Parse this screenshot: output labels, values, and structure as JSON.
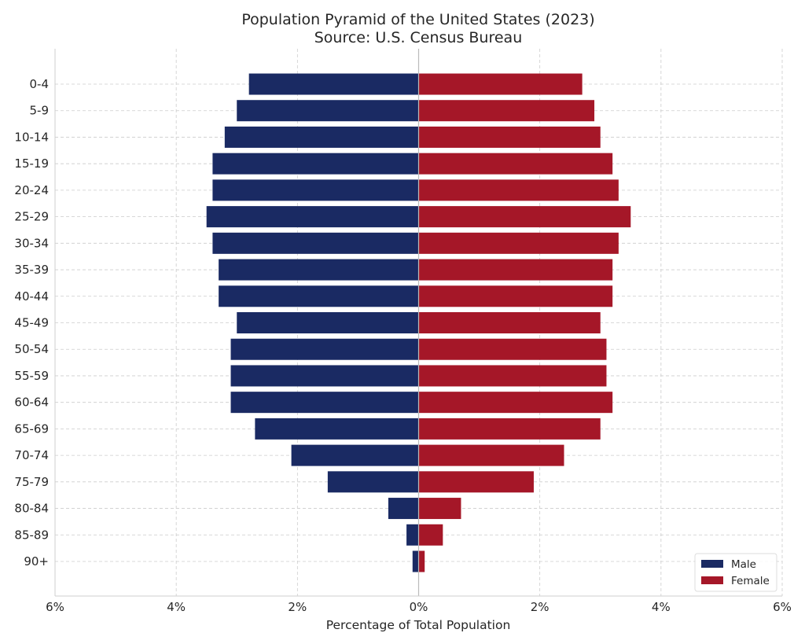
{
  "chart_data": {
    "type": "bar",
    "orientation": "horizontal",
    "title": "Population Pyramid of the United States (2023)",
    "subtitle": "Source: U.S. Census Bureau",
    "xlabel": "Percentage of Total Population",
    "ylabel": "",
    "xlim": [
      -6,
      6
    ],
    "xticks": [
      -6,
      -4,
      -2,
      0,
      2,
      4,
      6
    ],
    "xtick_labels": [
      "6%",
      "4%",
      "2%",
      "0%",
      "2%",
      "4%",
      "6%"
    ],
    "grid": true,
    "legend_position": "bottom-right",
    "categories": [
      "0-4",
      "5-9",
      "10-14",
      "15-19",
      "20-24",
      "25-29",
      "30-34",
      "35-39",
      "40-44",
      "45-49",
      "50-54",
      "55-59",
      "60-64",
      "65-69",
      "70-74",
      "75-79",
      "80-84",
      "85-89",
      "90+"
    ],
    "series": [
      {
        "name": "Male",
        "color": "#1a2a63",
        "values": [
          2.8,
          3.0,
          3.2,
          3.4,
          3.4,
          3.5,
          3.4,
          3.3,
          3.3,
          3.0,
          3.1,
          3.1,
          3.1,
          2.7,
          2.1,
          1.5,
          0.5,
          0.2,
          0.1
        ]
      },
      {
        "name": "Female",
        "color": "#a51728",
        "values": [
          2.7,
          2.9,
          3.0,
          3.2,
          3.3,
          3.5,
          3.3,
          3.2,
          3.2,
          3.0,
          3.1,
          3.1,
          3.2,
          3.0,
          2.4,
          1.9,
          0.7,
          0.4,
          0.1
        ]
      }
    ]
  }
}
